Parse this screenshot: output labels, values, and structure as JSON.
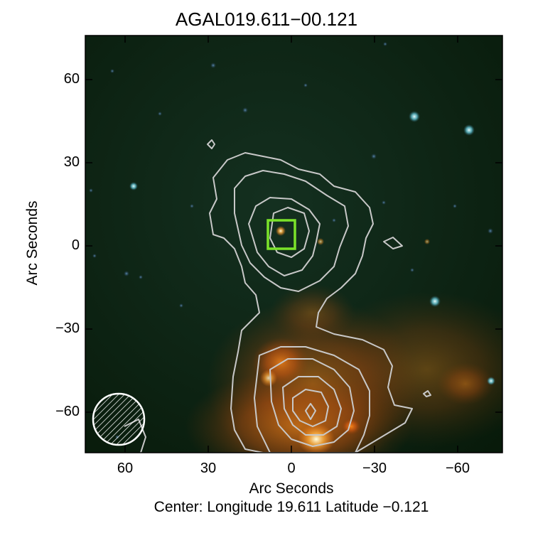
{
  "title": "AGAL019.611−00.121",
  "xlabel": "Arc Seconds",
  "ylabel": "Arc Seconds",
  "footer": "Center:  Longitude 19.611 Latitude −0.121",
  "x_ticks": [
    "60",
    "30",
    "0",
    "−30",
    "−60"
  ],
  "y_ticks": [
    "60",
    "30",
    "0",
    "−30",
    "−60"
  ],
  "axes": {
    "x_range": [
      75,
      -75
    ],
    "y_range": [
      -75,
      75
    ],
    "units": "arcsec"
  },
  "colors": {
    "background": "#0a1a0c",
    "contour": "#c8c8c8",
    "marker": "#7be32a",
    "emission": "#ff7a10"
  },
  "marker_box": {
    "x": [
      8,
      -2
    ],
    "y": [
      -2,
      9
    ]
  },
  "beam": {
    "hatched": true,
    "position": "bottom-left"
  }
}
